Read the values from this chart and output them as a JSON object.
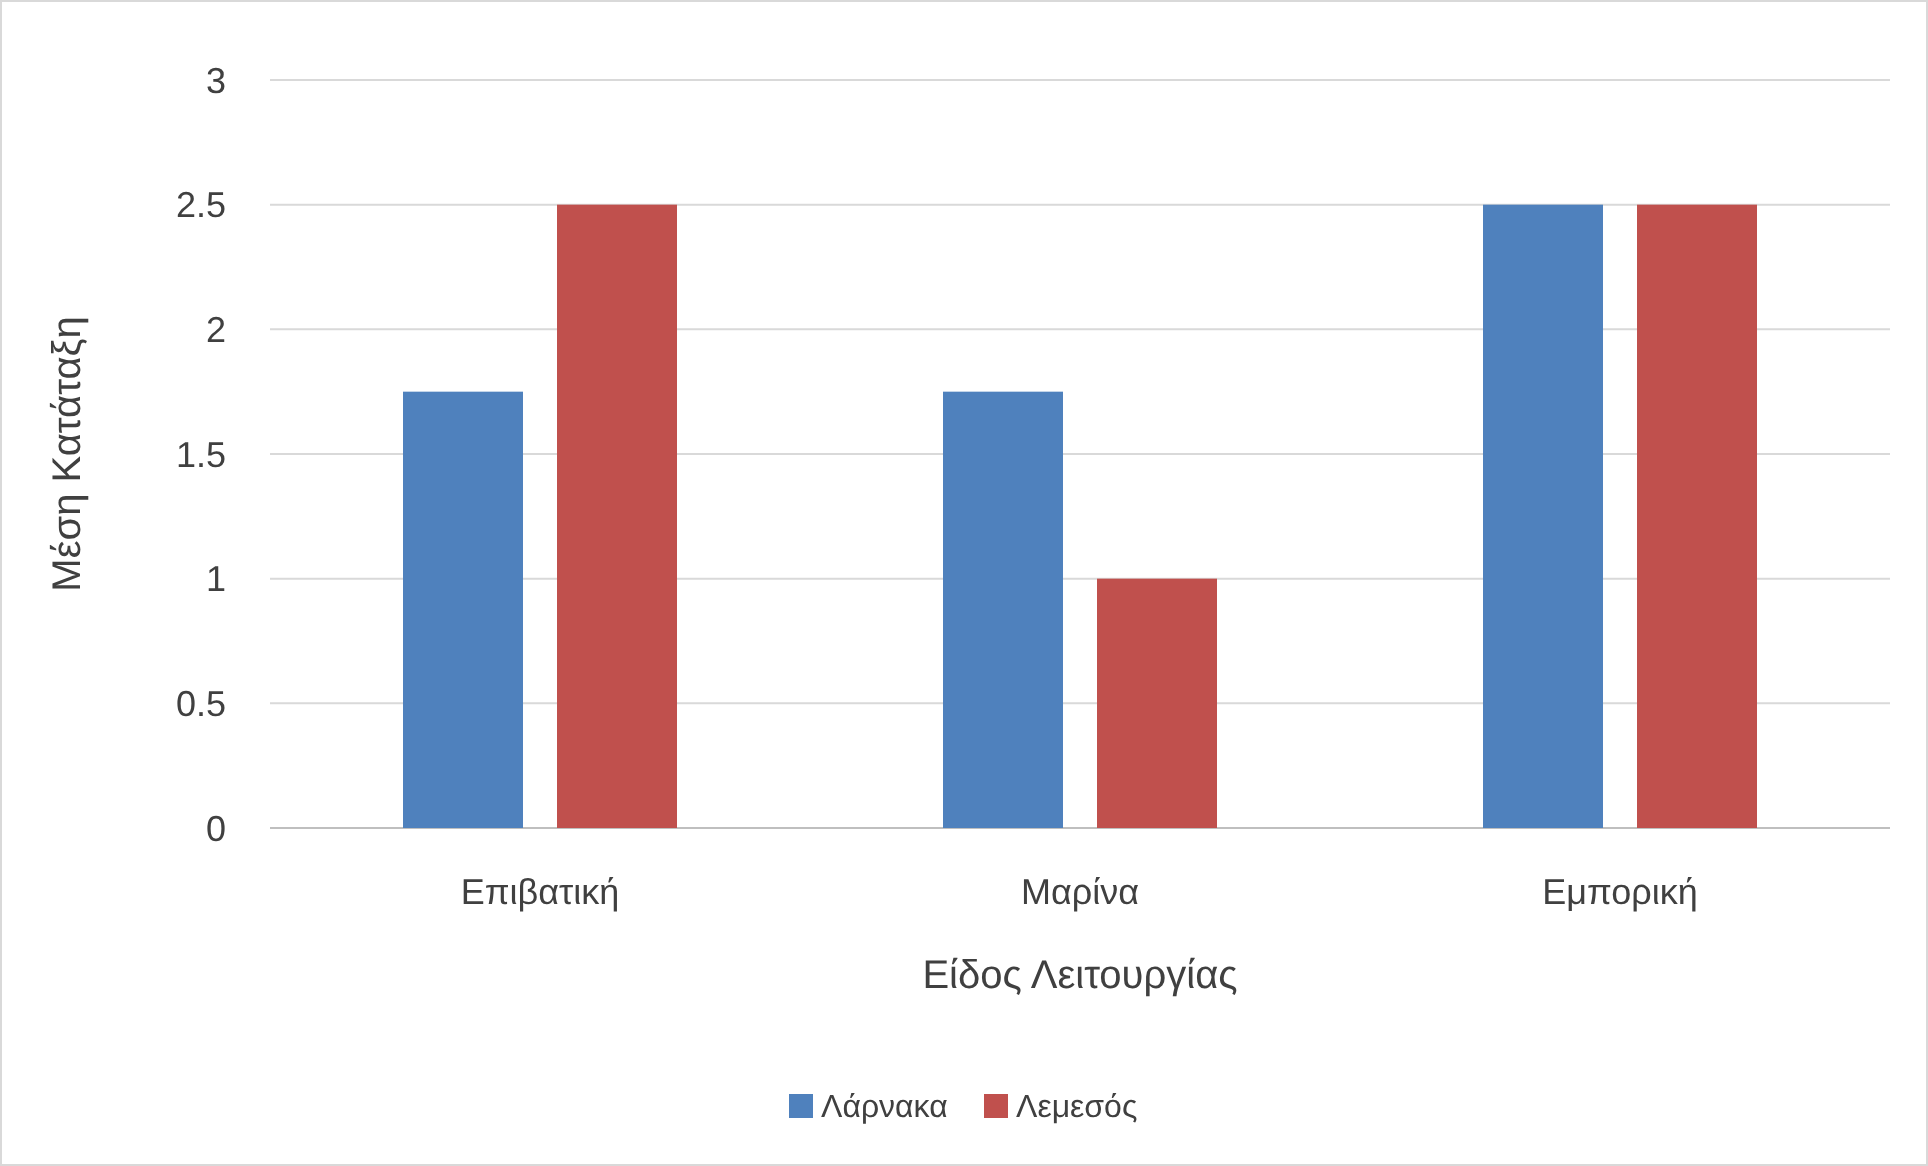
{
  "chart_data": {
    "type": "bar",
    "xlabel": "Είδος Λειτουργίας",
    "ylabel": "Μέση Κατάταξη",
    "categories": [
      "Επιβατική",
      "Μαρίνα",
      "Εμπορική"
    ],
    "series": [
      {
        "name": "Λάρνακα",
        "color": "#4f81bd",
        "values": [
          1.75,
          1.75,
          2.5
        ]
      },
      {
        "name": "Λεμεσός",
        "color": "#c0504d",
        "values": [
          2.5,
          1,
          2.5
        ]
      }
    ],
    "ylim": [
      0,
      3
    ],
    "yticks": [
      0,
      0.5,
      1,
      1.5,
      2,
      2.5,
      3
    ],
    "grid": "y",
    "legend": "bottom"
  }
}
